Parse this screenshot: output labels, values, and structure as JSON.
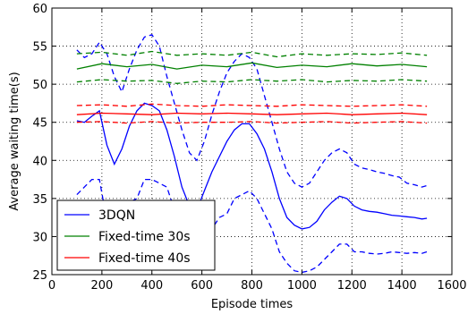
{
  "chart_data": {
    "type": "line",
    "title": "",
    "xlabel": "Episode times",
    "ylabel": "Average waiting time(s)",
    "xlim": [
      0,
      1600
    ],
    "ylim": [
      25,
      60
    ],
    "xticks": [
      0,
      200,
      400,
      600,
      800,
      1000,
      1200,
      1400,
      1600
    ],
    "yticks": [
      25,
      30,
      35,
      40,
      45,
      50,
      55,
      60
    ],
    "grid": "on (dotted)",
    "legend_position": "lower-left",
    "series": [
      {
        "name": "3DQN",
        "color": "#0000ff",
        "x": [
          100,
          130,
          160,
          190,
          220,
          250,
          280,
          310,
          340,
          370,
          400,
          430,
          460,
          490,
          520,
          550,
          580,
          610,
          640,
          670,
          700,
          730,
          760,
          790,
          820,
          850,
          880,
          910,
          940,
          970,
          1000,
          1030,
          1060,
          1090,
          1120,
          1150,
          1180,
          1210,
          1240,
          1270,
          1300,
          1330,
          1360,
          1390,
          1420,
          1450,
          1480,
          1500
        ],
        "mean": [
          45.2,
          45.0,
          45.8,
          46.5,
          42.0,
          39.5,
          41.5,
          44.5,
          46.5,
          47.5,
          47.2,
          46.5,
          44.0,
          40.5,
          36.5,
          34.0,
          33.5,
          36.0,
          38.5,
          40.5,
          42.5,
          44.0,
          44.8,
          44.8,
          43.5,
          41.5,
          38.5,
          35.0,
          32.5,
          31.5,
          31.0,
          31.2,
          32.0,
          33.5,
          34.5,
          35.3,
          35.0,
          34.0,
          33.5,
          33.3,
          33.2,
          33.0,
          32.8,
          32.7,
          32.6,
          32.5,
          32.3,
          32.4
        ],
        "upper": [
          54.5,
          53.5,
          54.0,
          55.5,
          54.0,
          51.0,
          49.0,
          52.0,
          54.5,
          56.2,
          56.5,
          55.0,
          51.0,
          47.5,
          44.0,
          41.0,
          40.0,
          42.5,
          46.0,
          49.0,
          51.5,
          53.0,
          54.0,
          53.5,
          52.0,
          48.5,
          45.0,
          41.5,
          38.5,
          37.0,
          36.5,
          37.0,
          38.5,
          40.0,
          41.0,
          41.5,
          41.0,
          39.5,
          39.0,
          38.8,
          38.5,
          38.3,
          38.0,
          37.8,
          37.0,
          36.8,
          36.5,
          36.7
        ],
        "lower": [
          35.5,
          36.5,
          37.5,
          37.5,
          32.0,
          29.0,
          30.5,
          34.5,
          35.0,
          37.5,
          37.5,
          37.0,
          36.5,
          33.5,
          29.5,
          27.5,
          27.0,
          29.5,
          31.0,
          32.5,
          33.0,
          35.0,
          35.5,
          36.0,
          35.0,
          33.0,
          31.0,
          28.0,
          26.5,
          25.5,
          25.3,
          25.5,
          26.0,
          27.0,
          28.0,
          29.0,
          29.0,
          28.0,
          28.0,
          27.8,
          27.7,
          27.8,
          28.0,
          27.9,
          27.8,
          27.9,
          27.8,
          28.0
        ]
      },
      {
        "name": "Fixed-time 30s",
        "color": "#008000",
        "x": [
          100,
          200,
          300,
          400,
          500,
          600,
          700,
          800,
          900,
          1000,
          1100,
          1200,
          1300,
          1400,
          1500
        ],
        "mean": [
          52.0,
          52.7,
          52.3,
          52.6,
          52.0,
          52.5,
          52.3,
          52.8,
          52.2,
          52.5,
          52.3,
          52.7,
          52.4,
          52.6,
          52.3
        ],
        "upper": [
          54.0,
          54.2,
          53.8,
          54.3,
          53.8,
          54.0,
          53.8,
          54.2,
          53.6,
          54.0,
          53.8,
          54.0,
          53.9,
          54.1,
          53.8
        ],
        "lower": [
          50.3,
          50.6,
          50.4,
          50.5,
          50.1,
          50.4,
          50.3,
          50.6,
          50.4,
          50.6,
          50.3,
          50.5,
          50.4,
          50.6,
          50.4
        ]
      },
      {
        "name": "Fixed-time 40s",
        "color": "#ff0000",
        "x": [
          100,
          200,
          300,
          400,
          500,
          600,
          700,
          800,
          900,
          1000,
          1100,
          1200,
          1300,
          1400,
          1500
        ],
        "mean": [
          46.0,
          46.2,
          46.1,
          46.0,
          46.2,
          46.1,
          46.2,
          46.1,
          46.0,
          46.1,
          46.2,
          46.0,
          46.1,
          46.2,
          46.0
        ],
        "upper": [
          47.2,
          47.3,
          47.1,
          47.4,
          47.2,
          47.1,
          47.3,
          47.2,
          47.1,
          47.3,
          47.2,
          47.1,
          47.2,
          47.3,
          47.1
        ],
        "lower": [
          45.0,
          45.1,
          44.9,
          45.1,
          44.9,
          45.0,
          45.0,
          45.1,
          44.9,
          45.0,
          45.1,
          44.9,
          45.0,
          45.1,
          44.9
        ]
      }
    ]
  }
}
